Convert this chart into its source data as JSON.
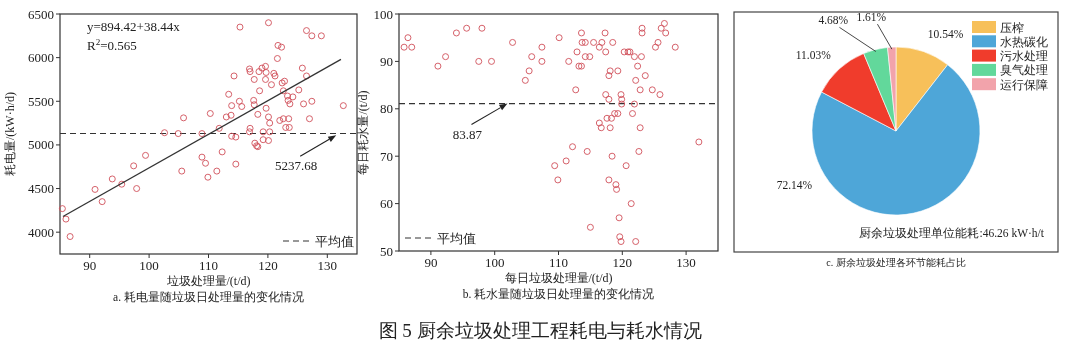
{
  "chart_data": [
    {
      "type": "scatter",
      "title": "a. 耗电量随垃圾日处理量的变化情况",
      "xlabel": "垃圾处理量/(t/d)",
      "ylabel": "耗电量/(kW·h/d)",
      "xlim": [
        85,
        135
      ],
      "ylim": [
        3750,
        6500
      ],
      "xticks": [
        90,
        100,
        110,
        120,
        130
      ],
      "yticks": [
        4000,
        4500,
        5000,
        5500,
        6000,
        6500
      ],
      "legend": "bottom right",
      "series": [
        {
          "type": "scatter",
          "marker": "circle",
          "color": "#d0505a",
          "x": [
            85.4,
            86.0,
            86.7,
            90.9,
            92.1,
            93.8,
            95.4,
            97.4,
            97.9,
            99.4,
            102.6,
            104.9,
            105.5,
            105.8,
            108.9,
            108.9,
            109.5,
            109.9,
            110.3,
            111.4,
            111.8,
            112.3,
            113.0,
            113.4,
            113.8,
            113.9,
            113.9,
            114.6,
            114.6,
            114.3,
            115.2,
            115.3,
            115.6,
            116.9,
            117.0,
            117.0,
            116.9,
            117.6,
            117.7,
            117.7,
            117.8,
            118.1,
            118.3,
            118.3,
            118.5,
            118.6,
            119.0,
            119.2,
            119.2,
            119.6,
            119.6,
            119.7,
            119.7,
            120.1,
            120.1,
            120.1,
            120.3,
            120.3,
            120.6,
            121.0,
            121.2,
            121.6,
            121.7,
            122.3,
            122.0,
            122.4,
            122.6,
            122.6,
            122.8,
            123.0,
            123.3,
            123.4,
            123.5,
            123.6,
            123.7,
            124.2,
            125.2,
            125.8,
            126.0,
            126.5,
            126.5,
            127.0,
            127.4,
            127.4,
            129.0,
            132.7
          ],
          "values": [
            4270,
            4150,
            3950,
            4490,
            4350,
            4610,
            4550,
            4760,
            4500,
            4880,
            5140,
            5130,
            4700,
            5310,
            5130,
            4860,
            4790,
            4630,
            5360,
            4700,
            5190,
            4920,
            5320,
            5580,
            5340,
            5450,
            5100,
            5090,
            4780,
            5790,
            5500,
            6350,
            5440,
            5870,
            5840,
            5190,
            5150,
            5510,
            5460,
            5750,
            5020,
            4990,
            4980,
            5350,
            5840,
            5620,
            5880,
            5150,
            5060,
            5900,
            5750,
            5830,
            5420,
            6400,
            5320,
            5050,
            5250,
            5150,
            5690,
            5820,
            5790,
            5990,
            6140,
            6120,
            5280,
            5710,
            5620,
            5300,
            5730,
            5200,
            5560,
            5510,
            5300,
            5200,
            5470,
            5550,
            5630,
            5880,
            5470,
            5790,
            6310,
            5300,
            5500,
            6250,
            6250,
            5450
          ]
        },
        {
          "type": "line",
          "color": "#333333",
          "x": [
            85.5,
            132.3
          ],
          "values": [
            4180,
            5980
          ]
        }
      ],
      "ref_lines": [
        {
          "axis": "y",
          "value": 5130,
          "label": "平均值",
          "color": "#333333",
          "line_style": "dashed"
        }
      ],
      "annotations": [
        "y=894.42+38.44x",
        "R$^{2}$=0.565",
        {
          "text": "5237.68",
          "x": 131.5,
          "y": 5110
        }
      ]
    },
    {
      "type": "scatter",
      "title": "b. 耗水量随垃圾日处理量的变化情况",
      "xlabel": "每日垃圾处理量/(t/d)",
      "ylabel": "每日耗水量/(t/d)",
      "xlim": [
        85,
        135
      ],
      "ylim": [
        50,
        100
      ],
      "xticks": [
        90,
        100,
        110,
        120,
        130
      ],
      "yticks": [
        50,
        60,
        70,
        80,
        90,
        100
      ],
      "legend": "bottom left",
      "series": [
        {
          "type": "scatter",
          "marker": "circle",
          "color": "#d0505a",
          "x": [
            85.8,
            86.4,
            87.0,
            91.1,
            92.3,
            94.0,
            95.6,
            98.0,
            97.5,
            99.5,
            102.8,
            104.8,
            105.4,
            105.8,
            107.4,
            107.4,
            109.4,
            109.9,
            110.1,
            111.2,
            111.6,
            112.2,
            112.7,
            112.9,
            113.2,
            113.6,
            113.6,
            113.7,
            114.2,
            114.2,
            114.5,
            114.9,
            115.0,
            115.5,
            116.4,
            116.4,
            116.7,
            116.8,
            117.3,
            117.4,
            117.4,
            117.6,
            117.9,
            117.9,
            117.9,
            118.1,
            118.1,
            118.3,
            118.4,
            118.5,
            118.8,
            119.0,
            119.1,
            119.3,
            119.3,
            119.5,
            119.6,
            119.8,
            119.8,
            119.9,
            119.9,
            120.3,
            120.6,
            120.9,
            121.2,
            121.4,
            121.6,
            121.9,
            121.9,
            122.1,
            122.1,
            122.4,
            122.6,
            122.8,
            122.8,
            123.0,
            123.1,
            123.1,
            123.6,
            124.7,
            125.2,
            125.6,
            125.9,
            126.1,
            126.6,
            126.8,
            128.3,
            132.0
          ],
          "values": [
            93,
            95,
            93,
            89,
            91,
            96,
            97,
            97,
            90,
            90,
            94,
            86,
            88,
            91,
            93,
            90,
            68,
            65,
            95,
            69,
            90,
            72,
            84,
            92,
            89,
            89,
            96,
            94,
            94,
            91,
            71,
            91,
            55,
            94,
            93,
            77,
            76,
            94,
            96,
            92,
            83,
            78,
            82,
            87,
            65,
            88,
            76,
            78,
            70,
            94,
            79,
            64,
            63,
            88,
            79,
            57,
            53,
            52,
            83,
            82,
            81,
            92,
            68,
            92,
            92,
            60,
            79,
            91,
            81,
            86,
            52,
            89,
            71,
            84,
            76,
            91,
            97,
            96,
            87,
            84,
            93,
            94,
            83,
            97,
            98,
            96,
            93,
            73
          ]
        }
      ],
      "ref_lines": [
        {
          "axis": "y",
          "value": 81.1,
          "label": "平均值",
          "color": "#333333",
          "line_style": "dashed"
        }
      ],
      "annotations": [
        {
          "text": "83.87",
          "x": 102,
          "y": 81.1
        }
      ]
    },
    {
      "type": "pie",
      "title": "c. 厨余垃圾处理各环节能耗占比",
      "legend": "top right",
      "categories": [
        "压榨",
        "水热碳化",
        "污水处理",
        "臭气处理",
        "运行保障"
      ],
      "values": [
        10.54,
        72.14,
        11.03,
        4.68,
        1.61
      ],
      "colors": [
        "#f7c05a",
        "#4ea6d8",
        "#f03c2c",
        "#62d89b",
        "#f2a3ab"
      ],
      "value_labels": [
        "10.54%",
        "72.14%",
        "11.03%",
        "4.68%",
        "1.61%"
      ],
      "annotations": [
        "厨余垃圾处理单位能耗:46.26 kW·h/t"
      ]
    },
    {
      "type": "other",
      "title": "图 5  厨余垃圾处理工程耗电与耗水情况"
    }
  ]
}
